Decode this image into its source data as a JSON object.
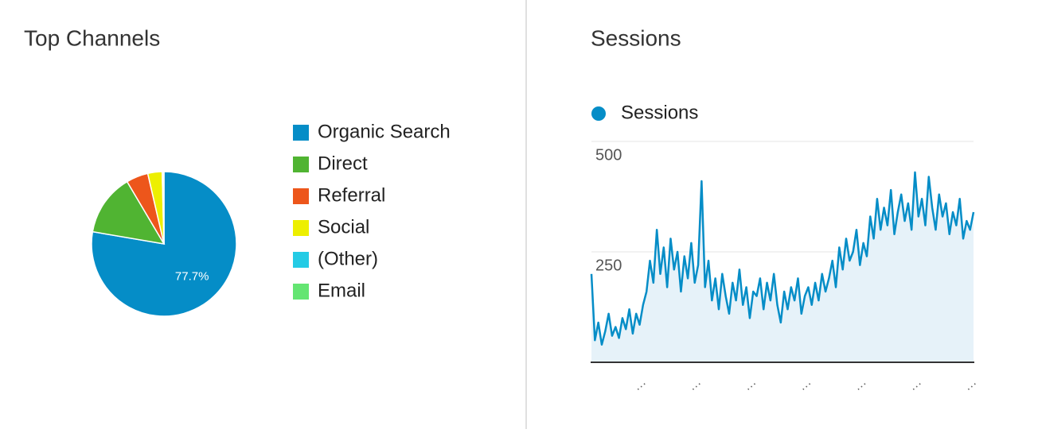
{
  "chart_data": [
    {
      "type": "pie",
      "title": "Top Channels",
      "categories": [
        "Organic Search",
        "Direct",
        "Referral",
        "Social",
        "(Other)",
        "Email"
      ],
      "values": [
        77.7,
        13.8,
        4.9,
        3.2,
        0.3,
        0.1
      ],
      "value_labels": [
        "77.7%",
        null,
        null,
        null,
        null,
        null
      ],
      "colors": [
        "#058dc7",
        "#50b432",
        "#ed561b",
        "#edef00",
        "#24cbe5",
        "#64e572"
      ],
      "legend": "right"
    },
    {
      "type": "area",
      "title": "Sessions",
      "categories": [
        null,
        null,
        null,
        null,
        null,
        null,
        null,
        null,
        null,
        null,
        null,
        null,
        null,
        null,
        "…",
        null,
        null,
        null,
        null,
        null,
        null,
        null,
        null,
        null,
        null,
        null,
        null,
        null,
        null,
        null,
        "…",
        null,
        null,
        null,
        null,
        null,
        null,
        null,
        null,
        null,
        null,
        null,
        null,
        null,
        null,
        null,
        "…",
        null,
        null,
        null,
        null,
        null,
        null,
        null,
        null,
        null,
        null,
        null,
        null,
        null,
        null,
        null,
        "…",
        null,
        null,
        null,
        null,
        null,
        null,
        null,
        null,
        null,
        null,
        null,
        null,
        null,
        null,
        null,
        "…",
        null,
        null,
        null,
        null,
        null,
        null,
        null,
        null,
        null,
        null,
        null,
        null,
        null,
        null,
        null,
        "…",
        null,
        null,
        null,
        null,
        null,
        null,
        null,
        null,
        null,
        null,
        null,
        null,
        null,
        null,
        null,
        "…",
        null
      ],
      "series": [
        {
          "name": "Sessions",
          "color": "#058dc7",
          "values": [
            200,
            50,
            90,
            40,
            70,
            110,
            60,
            80,
            55,
            100,
            75,
            120,
            65,
            110,
            85,
            130,
            160,
            230,
            180,
            300,
            200,
            260,
            170,
            280,
            210,
            250,
            160,
            240,
            190,
            270,
            180,
            220,
            410,
            170,
            230,
            140,
            190,
            120,
            200,
            150,
            110,
            180,
            140,
            210,
            130,
            170,
            100,
            160,
            150,
            190,
            120,
            180,
            140,
            200,
            130,
            90,
            160,
            120,
            170,
            140,
            190,
            110,
            150,
            170,
            130,
            180,
            140,
            200,
            160,
            190,
            230,
            170,
            260,
            210,
            280,
            230,
            250,
            300,
            220,
            270,
            240,
            330,
            280,
            370,
            300,
            350,
            310,
            390,
            290,
            340,
            380,
            320,
            360,
            300,
            430,
            330,
            370,
            310,
            420,
            350,
            300,
            380,
            330,
            360,
            290,
            340,
            310,
            370,
            280,
            320,
            300,
            340
          ]
        }
      ],
      "ylim": [
        0,
        500
      ],
      "yticks": [
        250,
        500
      ],
      "grid": true,
      "legend": "top-left"
    }
  ]
}
